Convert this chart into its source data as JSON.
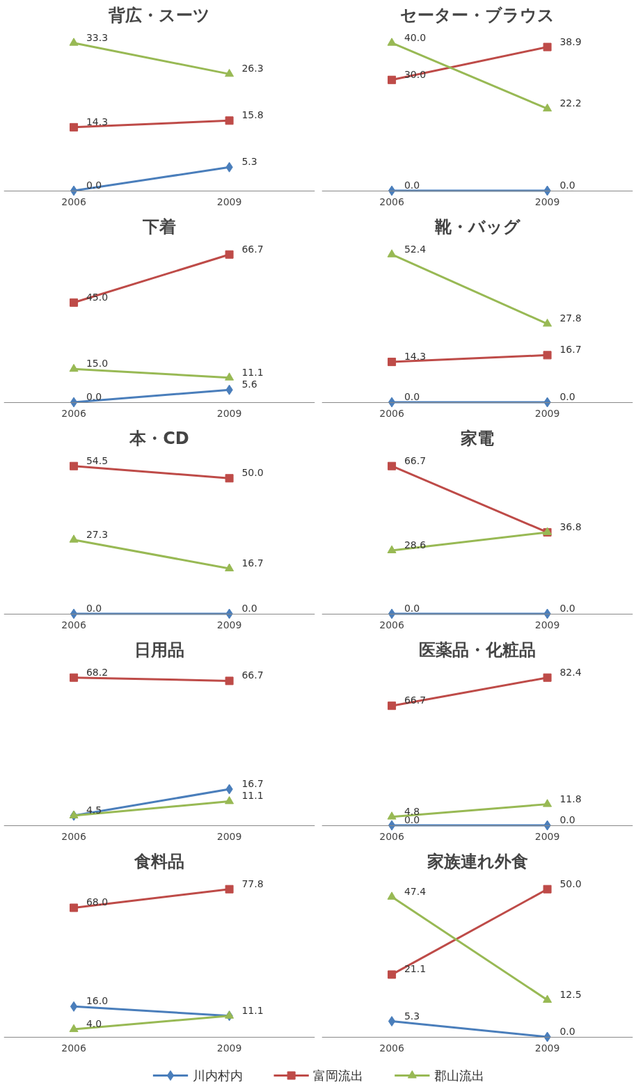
{
  "chart_data": [
    {
      "type": "line",
      "title": "背広・スーツ",
      "categories": [
        "2006",
        "2009"
      ],
      "tick_labels": "x",
      "series": [
        {
          "color": "#4a7ebb",
          "marker": "diamond",
          "values": [
            0.0,
            5.3
          ],
          "value_labels": [
            "0.0",
            "5.3"
          ]
        },
        {
          "color": "#be4b48",
          "marker": "square",
          "values": [
            14.3,
            15.8
          ],
          "value_labels": [
            "14.3",
            "15.8"
          ]
        },
        {
          "color": "#98b954",
          "marker": "triangle",
          "values": [
            33.3,
            26.3
          ],
          "value_labels": [
            "33.3",
            "26.3"
          ]
        }
      ]
    },
    {
      "type": "line",
      "title": "セーター・ブラウス",
      "categories": [
        "2006",
        "2009"
      ],
      "tick_labels": "x",
      "series": [
        {
          "color": "#4a7ebb",
          "marker": "diamond",
          "values": [
            0.0,
            0.0
          ],
          "value_labels": [
            "0.0",
            "0.0"
          ]
        },
        {
          "color": "#be4b48",
          "marker": "square",
          "values": [
            30.0,
            38.9
          ],
          "value_labels": [
            "30.0",
            "38.9"
          ]
        },
        {
          "color": "#98b954",
          "marker": "triangle",
          "values": [
            40.0,
            22.2
          ],
          "value_labels": [
            "40.0",
            "22.2"
          ]
        }
      ]
    },
    {
      "type": "line",
      "title": "下着",
      "categories": [
        "2006",
        "2009"
      ],
      "tick_labels": "x",
      "series": [
        {
          "color": "#4a7ebb",
          "marker": "diamond",
          "values": [
            0.0,
            5.6
          ],
          "value_labels": [
            "0.0",
            "5.6"
          ]
        },
        {
          "color": "#be4b48",
          "marker": "square",
          "values": [
            45.0,
            66.7
          ],
          "value_labels": [
            "45.0",
            "66.7"
          ]
        },
        {
          "color": "#98b954",
          "marker": "triangle",
          "values": [
            15.0,
            11.1
          ],
          "value_labels": [
            "15.0",
            "11.1"
          ]
        }
      ]
    },
    {
      "type": "line",
      "title": "靴・バッグ",
      "categories": [
        "2006",
        "2009"
      ],
      "tick_labels": "x",
      "series": [
        {
          "color": "#4a7ebb",
          "marker": "diamond",
          "values": [
            0.0,
            0.0
          ],
          "value_labels": [
            "0.0",
            "0.0"
          ]
        },
        {
          "color": "#be4b48",
          "marker": "square",
          "values": [
            14.3,
            16.7
          ],
          "value_labels": [
            "14.3",
            "16.7"
          ]
        },
        {
          "color": "#98b954",
          "marker": "triangle",
          "values": [
            52.4,
            27.8
          ],
          "value_labels": [
            "52.4",
            "27.8"
          ]
        }
      ]
    },
    {
      "type": "line",
      "title": "本・CD",
      "categories": [
        "2006",
        "2009"
      ],
      "tick_labels": "x",
      "series": [
        {
          "color": "#4a7ebb",
          "marker": "diamond",
          "values": [
            0.0,
            0.0
          ],
          "value_labels": [
            "0.0",
            "0.0"
          ]
        },
        {
          "color": "#be4b48",
          "marker": "square",
          "values": [
            54.5,
            50.0
          ],
          "value_labels": [
            "54.5",
            "50.0"
          ]
        },
        {
          "color": "#98b954",
          "marker": "triangle",
          "values": [
            27.3,
            16.7
          ],
          "value_labels": [
            "27.3",
            "16.7"
          ]
        }
      ]
    },
    {
      "type": "line",
      "title": "家電",
      "categories": [
        "2006",
        "2009"
      ],
      "tick_labels": "x",
      "series": [
        {
          "color": "#4a7ebb",
          "marker": "diamond",
          "values": [
            0.0,
            0.0
          ],
          "value_labels": [
            "0.0",
            "0.0"
          ]
        },
        {
          "color": "#be4b48",
          "marker": "square",
          "values": [
            66.7,
            36.8
          ],
          "value_labels": [
            "66.7",
            null
          ]
        },
        {
          "color": "#98b954",
          "marker": "triangle",
          "values": [
            28.6,
            36.8
          ],
          "value_labels": [
            "28.6",
            "36.8"
          ]
        }
      ]
    },
    {
      "type": "line",
      "title": "日用品",
      "categories": [
        "2006",
        "2009"
      ],
      "tick_labels": "x",
      "series": [
        {
          "color": "#4a7ebb",
          "marker": "diamond",
          "values": [
            4.5,
            16.7
          ],
          "value_labels": [
            null,
            "16.7"
          ]
        },
        {
          "color": "#be4b48",
          "marker": "square",
          "values": [
            68.2,
            66.7
          ],
          "value_labels": [
            "68.2",
            "66.7"
          ]
        },
        {
          "color": "#98b954",
          "marker": "triangle",
          "values": [
            4.5,
            11.1
          ],
          "value_labels": [
            "4.5",
            "11.1"
          ]
        }
      ]
    },
    {
      "type": "line",
      "title": "医薬品・化粧品",
      "categories": [
        "2006",
        "2009"
      ],
      "tick_labels": "x",
      "series": [
        {
          "color": "#4a7ebb",
          "marker": "diamond",
          "values": [
            0.0,
            0.0
          ],
          "value_labels": [
            "0.0",
            "0.0"
          ]
        },
        {
          "color": "#be4b48",
          "marker": "square",
          "values": [
            66.7,
            82.4
          ],
          "value_labels": [
            "66.7",
            "82.4"
          ]
        },
        {
          "color": "#98b954",
          "marker": "triangle",
          "values": [
            4.8,
            11.8
          ],
          "value_labels": [
            "4.8",
            "11.8"
          ]
        }
      ]
    },
    {
      "type": "line",
      "title": "食料品",
      "categories": [
        "2006",
        "2009"
      ],
      "tick_labels": "x",
      "series": [
        {
          "color": "#4a7ebb",
          "marker": "diamond",
          "values": [
            16.0,
            11.1
          ],
          "value_labels": [
            "16.0",
            null
          ]
        },
        {
          "color": "#be4b48",
          "marker": "square",
          "values": [
            68.0,
            77.8
          ],
          "value_labels": [
            "68.0",
            "77.8"
          ]
        },
        {
          "color": "#98b954",
          "marker": "triangle",
          "values": [
            4.0,
            11.1
          ],
          "value_labels": [
            "4.0",
            "11.1"
          ]
        }
      ]
    },
    {
      "type": "line",
      "title": "家族連れ外食",
      "categories": [
        "2006",
        "2009"
      ],
      "tick_labels": "x",
      "legend": "bottom",
      "series": [
        {
          "name": "川内村内",
          "color": "#4a7ebb",
          "marker": "diamond",
          "values": [
            5.3,
            0.0
          ],
          "value_labels": [
            "5.3",
            "0.0"
          ]
        },
        {
          "name": "富岡流出",
          "color": "#be4b48",
          "marker": "square",
          "values": [
            21.1,
            50.0
          ],
          "value_labels": [
            "21.1",
            "50.0"
          ]
        },
        {
          "name": "郡山流出",
          "color": "#98b954",
          "marker": "triangle",
          "values": [
            47.4,
            12.5
          ],
          "value_labels": [
            "47.4",
            "12.5"
          ]
        }
      ]
    }
  ]
}
